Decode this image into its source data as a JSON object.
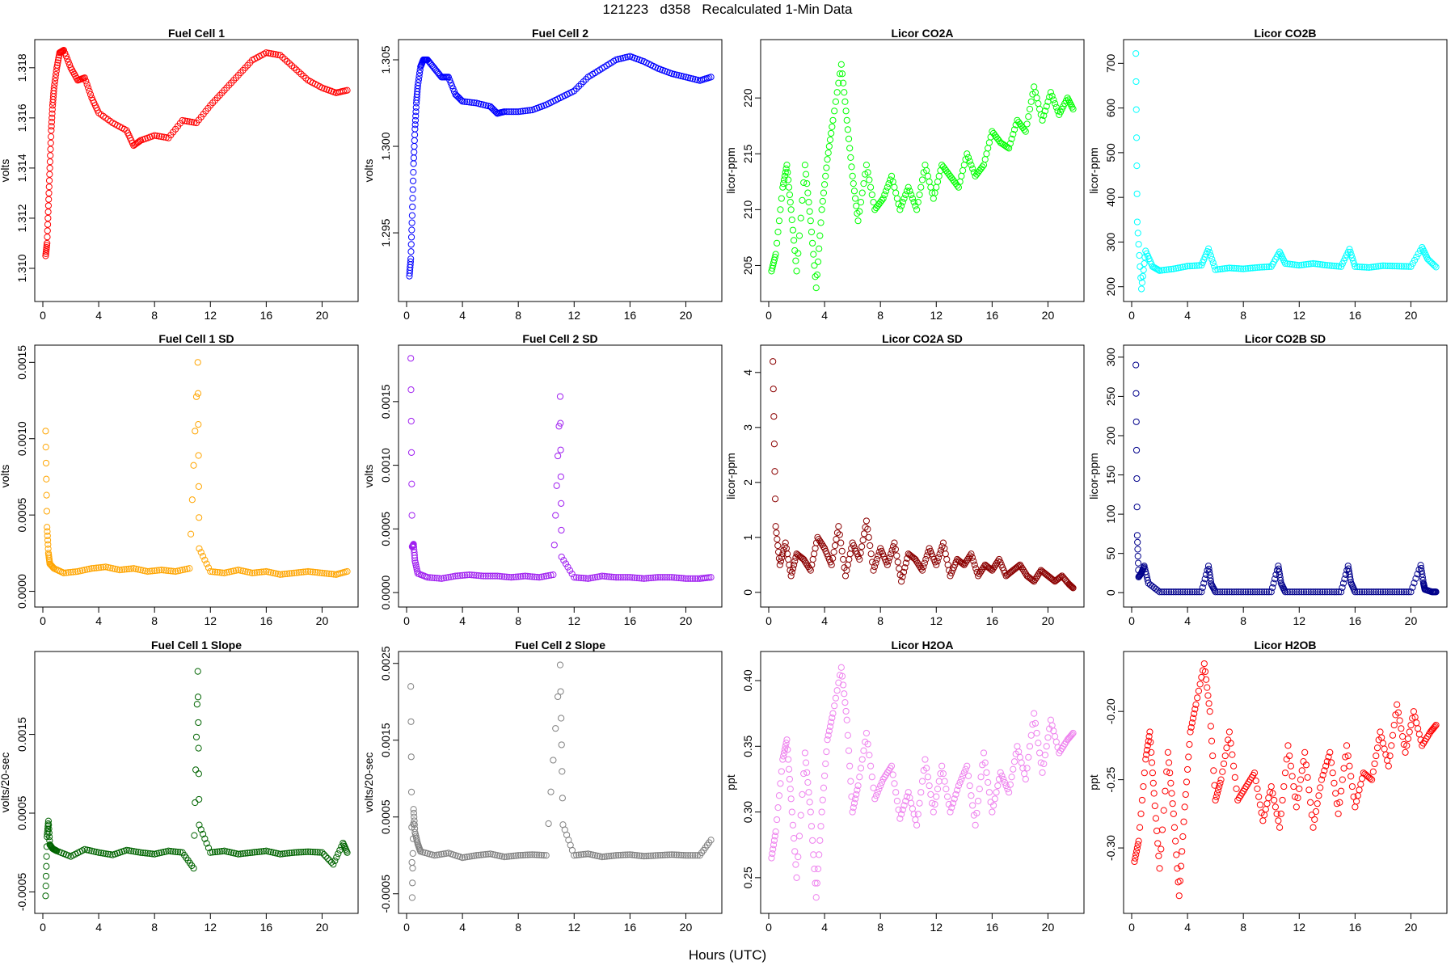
{
  "figure": {
    "title": "121223   d358   Recalculated 1-Min Data",
    "xlabel": "Hours (UTC)"
  },
  "chart_data": [
    {
      "type": "scatter",
      "title": "Fuel Cell 1",
      "ylabel": "volts",
      "color": "#ff0000",
      "xlim": [
        0,
        22
      ],
      "ylim": [
        1.309,
        1.3188
      ],
      "xticks": [
        "0",
        "4",
        "8",
        "12",
        "16",
        "20"
      ],
      "yticks": [
        "1.310",
        "1.312",
        "1.314",
        "1.316",
        "1.318"
      ],
      "x": [
        0.2,
        0.3,
        0.4,
        0.5,
        0.6,
        0.7,
        0.8,
        1.0,
        1.2,
        1.5,
        2.0,
        2.5,
        3.0,
        3.5,
        4.0,
        5.0,
        6.0,
        6.5,
        7.0,
        8.0,
        9.0,
        10.0,
        11.0,
        12.0,
        13.0,
        14.0,
        15.0,
        16.0,
        17.0,
        18.0,
        19.0,
        20.0,
        21.0,
        21.8
      ],
      "y": [
        1.3105,
        1.311,
        1.3125,
        1.314,
        1.3155,
        1.3165,
        1.3172,
        1.318,
        1.3186,
        1.3187,
        1.318,
        1.3175,
        1.3176,
        1.3168,
        1.3162,
        1.3158,
        1.3155,
        1.3149,
        1.3151,
        1.3153,
        1.3152,
        1.3159,
        1.3158,
        1.3165,
        1.3171,
        1.3177,
        1.3183,
        1.3186,
        1.3185,
        1.318,
        1.3175,
        1.3172,
        1.317,
        1.3171
      ]
    },
    {
      "type": "scatter",
      "title": "Fuel Cell 2",
      "ylabel": "volts",
      "color": "#0000ff",
      "xlim": [
        0,
        22
      ],
      "ylim": [
        1.2915,
        1.3057
      ],
      "xticks": [
        "0",
        "4",
        "8",
        "12",
        "16",
        "20"
      ],
      "yticks": [
        "1.295",
        "1.300",
        "1.305"
      ],
      "x": [
        0.2,
        0.3,
        0.4,
        0.5,
        0.6,
        0.7,
        0.8,
        1.0,
        1.2,
        1.5,
        2.0,
        2.5,
        3.0,
        3.5,
        4.0,
        5.0,
        6.0,
        6.5,
        7.0,
        8.0,
        9.0,
        10.0,
        11.0,
        12.0,
        13.0,
        14.0,
        15.0,
        16.0,
        17.0,
        18.0,
        19.0,
        20.0,
        21.0,
        21.8
      ],
      "y": [
        1.2925,
        1.2935,
        1.296,
        1.299,
        1.301,
        1.3025,
        1.3035,
        1.3046,
        1.305,
        1.305,
        1.3045,
        1.304,
        1.304,
        1.303,
        1.3026,
        1.3025,
        1.3023,
        1.3019,
        1.302,
        1.302,
        1.3021,
        1.3024,
        1.3028,
        1.3032,
        1.304,
        1.3045,
        1.305,
        1.3052,
        1.3049,
        1.3045,
        1.3042,
        1.304,
        1.3038,
        1.304
      ]
    },
    {
      "type": "scatter",
      "title": "Licor CO2A",
      "ylabel": "licor-ppm",
      "color": "#00ff00",
      "xlim": [
        0,
        22
      ],
      "ylim": [
        202.5,
        224.5
      ],
      "xticks": [
        "0",
        "4",
        "8",
        "12",
        "16",
        "20"
      ],
      "yticks": [
        "205",
        "210",
        "215",
        "220"
      ],
      "x": [
        0.2,
        0.5,
        1.0,
        1.3,
        1.6,
        2.0,
        2.6,
        3.0,
        3.4,
        3.8,
        4.2,
        4.6,
        5.2,
        5.6,
        6.0,
        6.4,
        7.0,
        7.6,
        8.2,
        8.8,
        9.4,
        10.0,
        10.6,
        11.2,
        11.8,
        12.4,
        13.0,
        13.6,
        14.2,
        14.8,
        15.4,
        16.0,
        16.6,
        17.2,
        17.8,
        18.4,
        19.0,
        19.6,
        20.2,
        20.8,
        21.4,
        21.8
      ],
      "y": [
        204.5,
        206.0,
        212.0,
        214.0,
        210.0,
        204.5,
        214.0,
        209.0,
        203.0,
        210.0,
        214.5,
        218.0,
        223.0,
        218.0,
        213.0,
        209.0,
        214.0,
        210.0,
        211.0,
        213.0,
        210.0,
        212.0,
        210.0,
        214.0,
        211.0,
        214.0,
        213.0,
        212.0,
        215.0,
        213.0,
        214.0,
        217.0,
        216.0,
        215.5,
        218.0,
        217.0,
        221.0,
        218.0,
        220.5,
        218.5,
        220.0,
        219.0
      ]
    },
    {
      "type": "scatter",
      "title": "Licor CO2B",
      "ylabel": "licor-ppm",
      "color": "#00ffff",
      "xlim": [
        0,
        22
      ],
      "ylim": [
        185,
        735
      ],
      "xticks": [
        "0",
        "4",
        "8",
        "12",
        "16",
        "20"
      ],
      "yticks": [
        "200",
        "300",
        "400",
        "500",
        "600",
        "700"
      ],
      "x": [
        0.3,
        0.4,
        0.7,
        1.0,
        1.5,
        2.0,
        3.0,
        4.0,
        5.0,
        5.5,
        6.0,
        7.0,
        8.0,
        9.0,
        10.0,
        10.6,
        11.0,
        12.0,
        13.0,
        14.0,
        15.0,
        15.6,
        16.0,
        17.0,
        18.0,
        19.0,
        20.0,
        20.8,
        21.2,
        21.8
      ],
      "y": [
        722,
        345,
        195,
        280,
        245,
        236,
        240,
        246,
        248,
        285,
        238,
        242,
        240,
        243,
        245,
        278,
        252,
        248,
        252,
        248,
        245,
        284,
        245,
        243,
        247,
        246,
        245,
        288,
        262,
        244
      ]
    },
    {
      "type": "scatter",
      "title": "Fuel Cell 1 SD",
      "ylabel": "volts",
      "color": "#ffa500",
      "xlim": [
        0,
        22
      ],
      "ylim": [
        -5e-05,
        0.00156
      ],
      "xticks": [
        "0",
        "4",
        "8",
        "12",
        "16",
        "20"
      ],
      "yticks": [
        "0.0000",
        "0.0005",
        "0.0010",
        "0.0015"
      ],
      "x": [
        0.2,
        0.3,
        0.4,
        0.5,
        0.8,
        1.5,
        2.5,
        3.5,
        4.5,
        5.5,
        6.5,
        7.5,
        8.5,
        9.5,
        10.5,
        11.1,
        11.2,
        12.0,
        13.0,
        14.0,
        15.0,
        16.0,
        17.0,
        18.0,
        19.0,
        20.0,
        21.0,
        21.8
      ],
      "y": [
        0.00105,
        0.00042,
        0.00025,
        0.00018,
        0.00015,
        0.00012,
        0.00013,
        0.00015,
        0.00016,
        0.00014,
        0.00015,
        0.00013,
        0.00014,
        0.00013,
        0.00015,
        0.0015,
        0.00028,
        0.00013,
        0.00012,
        0.00014,
        0.00012,
        0.00013,
        0.00011,
        0.00012,
        0.00013,
        0.00012,
        0.00011,
        0.00013
      ]
    },
    {
      "type": "scatter",
      "title": "Fuel Cell 2 SD",
      "ylabel": "volts",
      "color": "#a020f0",
      "xlim": [
        0,
        22
      ],
      "ylim": [
        -5e-05,
        0.00188
      ],
      "xticks": [
        "0",
        "4",
        "8",
        "12",
        "16",
        "20"
      ],
      "yticks": [
        "0.0000",
        "0.0005",
        "0.0010",
        "0.0015"
      ],
      "x": [
        0.3,
        0.4,
        0.5,
        0.6,
        0.8,
        1.5,
        2.5,
        3.5,
        4.5,
        5.5,
        6.5,
        7.5,
        8.5,
        9.5,
        10.5,
        11.0,
        11.1,
        12.0,
        13.0,
        14.0,
        15.0,
        16.0,
        17.0,
        18.0,
        19.0,
        20.0,
        21.0,
        21.8
      ],
      "y": [
        0.00184,
        0.00036,
        0.00038,
        0.00025,
        0.00015,
        0.00012,
        0.00011,
        0.00013,
        0.00014,
        0.00013,
        0.00013,
        0.00012,
        0.00013,
        0.00012,
        0.00014,
        0.00154,
        0.00028,
        0.00012,
        0.00011,
        0.00013,
        0.00012,
        0.00012,
        0.00011,
        0.00012,
        0.00012,
        0.00011,
        0.00011,
        0.00012
      ]
    },
    {
      "type": "scatter",
      "title": "Licor CO2A SD",
      "ylabel": "licor-ppm",
      "color": "#8b0000",
      "xlim": [
        0,
        22
      ],
      "ylim": [
        -0.12,
        4.35
      ],
      "xticks": [
        "0",
        "4",
        "8",
        "12",
        "16",
        "20"
      ],
      "yticks": [
        "0",
        "1",
        "2",
        "3",
        "4"
      ],
      "x": [
        0.3,
        0.5,
        0.8,
        1.2,
        1.6,
        2.0,
        2.5,
        3.0,
        3.5,
        4.0,
        4.5,
        5.0,
        5.5,
        6.0,
        6.5,
        7.0,
        7.5,
        8.0,
        8.5,
        9.0,
        9.5,
        10.0,
        10.5,
        11.0,
        11.5,
        12.0,
        12.5,
        13.0,
        13.5,
        14.0,
        14.5,
        15.0,
        15.5,
        16.0,
        16.5,
        17.0,
        17.5,
        18.0,
        18.5,
        19.0,
        19.5,
        20.0,
        20.5,
        21.0,
        21.5,
        21.8
      ],
      "y": [
        4.2,
        1.2,
        0.5,
        0.9,
        0.3,
        0.7,
        0.6,
        0.4,
        1.0,
        0.8,
        0.5,
        1.2,
        0.3,
        0.9,
        0.6,
        1.3,
        0.4,
        0.8,
        0.5,
        0.9,
        0.2,
        0.7,
        0.6,
        0.4,
        0.8,
        0.5,
        0.9,
        0.3,
        0.6,
        0.5,
        0.7,
        0.3,
        0.5,
        0.4,
        0.6,
        0.3,
        0.4,
        0.5,
        0.3,
        0.2,
        0.4,
        0.3,
        0.2,
        0.3,
        0.15,
        0.08
      ]
    },
    {
      "type": "scatter",
      "title": "Licor CO2B SD",
      "ylabel": "licor-ppm",
      "color": "#00008b",
      "xlim": [
        0,
        22
      ],
      "ylim": [
        -8,
        305
      ],
      "xticks": [
        "0",
        "4",
        "8",
        "12",
        "16",
        "20"
      ],
      "yticks": [
        "0",
        "50",
        "100",
        "150",
        "200",
        "250",
        "300"
      ],
      "x": [
        0.3,
        0.4,
        0.5,
        0.7,
        0.9,
        1.2,
        2.0,
        3.0,
        4.0,
        5.0,
        5.5,
        5.7,
        6.0,
        7.0,
        8.0,
        9.0,
        10.0,
        10.5,
        10.7,
        11.0,
        12.0,
        13.0,
        14.0,
        15.0,
        15.5,
        15.7,
        16.0,
        17.0,
        18.0,
        19.0,
        20.0,
        20.7,
        20.9,
        21.0,
        21.5,
        21.8
      ],
      "y": [
        290,
        73,
        20,
        25,
        34,
        12,
        1,
        1,
        1,
        1,
        34,
        11,
        1,
        1,
        1,
        1,
        1,
        34,
        12,
        1,
        1,
        1,
        1,
        1,
        34,
        13,
        1,
        1,
        1,
        1,
        1,
        35,
        12,
        4,
        1,
        1
      ]
    },
    {
      "type": "scatter",
      "title": "Fuel Cell 1 Slope",
      "ylabel": "volts/20-sec",
      "color": "#006400",
      "xlim": [
        0,
        22
      ],
      "ylim": [
        -0.00067,
        0.00245
      ],
      "xticks": [
        "0",
        "4",
        "8",
        "12",
        "16",
        "20"
      ],
      "yticks": [
        "-0.0005",
        "0.0005",
        "0.0015"
      ],
      "x": [
        0.2,
        0.3,
        0.4,
        0.5,
        0.7,
        1.0,
        2.0,
        3.0,
        4.0,
        5.0,
        6.0,
        7.0,
        8.0,
        9.0,
        10.0,
        10.8,
        11.1,
        11.2,
        12.0,
        13.0,
        14.0,
        15.0,
        16.0,
        17.0,
        18.0,
        19.0,
        20.0,
        20.8,
        21.5,
        21.8
      ],
      "y": [
        -0.00055,
        0.0002,
        0.0004,
        0.0001,
        5e-05,
        2e-05,
        -5e-05,
        4e-05,
        0.0,
        -3e-05,
        3e-05,
        0.0,
        -2e-05,
        2e-05,
        0.0,
        -0.0002,
        0.0023,
        0.00035,
        0.0,
        2e-05,
        -2e-05,
        0.0,
        2e-05,
        -2e-05,
        0.0,
        1e-05,
        0.0,
        -0.00015,
        0.00012,
        0.0
      ]
    },
    {
      "type": "scatter",
      "title": "Fuel Cell 2 Slope",
      "ylabel": "volts/20-sec",
      "color": "#808080",
      "xlim": [
        0,
        22
      ],
      "ylim": [
        -0.00065,
        0.00255
      ],
      "xticks": [
        "0",
        "4",
        "8",
        "12",
        "16",
        "20"
      ],
      "yticks": [
        "-0.0005",
        "0.0005",
        "0.0015",
        "0.0025"
      ],
      "x": [
        0.3,
        0.4,
        0.5,
        0.6,
        0.8,
        1.0,
        2.0,
        3.0,
        4.0,
        5.0,
        6.0,
        7.0,
        8.0,
        9.0,
        10.0,
        11.0,
        11.2,
        12.0,
        13.0,
        14.0,
        15.0,
        16.0,
        17.0,
        18.0,
        19.0,
        20.0,
        21.0,
        21.8
      ],
      "y": [
        0.0022,
        -0.00055,
        0.0006,
        0.0003,
        0.00015,
        5e-05,
        0.0,
        3e-05,
        -3e-05,
        0.0,
        2e-05,
        -2e-05,
        0.0,
        1e-05,
        0.0,
        0.00248,
        0.0004,
        0.0,
        2e-05,
        -2e-05,
        0.0,
        1e-05,
        -1e-05,
        0.0,
        1e-05,
        0.0,
        0.0,
        0.0002
      ]
    },
    {
      "type": "scatter",
      "title": "Licor H2OA",
      "ylabel": "ppt",
      "color": "#ee82ee",
      "xlim": [
        0,
        22
      ],
      "ylim": [
        0.229,
        0.416
      ],
      "xticks": [
        "0",
        "4",
        "8",
        "12",
        "16",
        "20"
      ],
      "yticks": [
        "0.25",
        "0.30",
        "0.35",
        "0.40"
      ],
      "x": [
        0.2,
        0.5,
        1.0,
        1.3,
        1.6,
        2.0,
        2.6,
        3.0,
        3.4,
        3.8,
        4.2,
        4.6,
        5.2,
        5.6,
        6.0,
        6.4,
        7.0,
        7.6,
        8.2,
        8.8,
        9.4,
        10.0,
        10.6,
        11.2,
        11.8,
        12.4,
        13.0,
        13.6,
        14.2,
        14.8,
        15.4,
        16.0,
        16.6,
        17.2,
        17.8,
        18.4,
        19.0,
        19.6,
        20.2,
        20.8,
        21.4,
        21.8
      ],
      "y": [
        0.265,
        0.285,
        0.34,
        0.355,
        0.31,
        0.25,
        0.345,
        0.3,
        0.235,
        0.3,
        0.355,
        0.375,
        0.41,
        0.37,
        0.3,
        0.32,
        0.36,
        0.31,
        0.325,
        0.335,
        0.295,
        0.315,
        0.29,
        0.34,
        0.3,
        0.335,
        0.3,
        0.32,
        0.335,
        0.29,
        0.345,
        0.3,
        0.33,
        0.315,
        0.35,
        0.325,
        0.375,
        0.33,
        0.37,
        0.345,
        0.355,
        0.36
      ]
    },
    {
      "type": "scatter",
      "title": "Licor H2OB",
      "ylabel": "ppt",
      "color": "#ff0000",
      "xlim": [
        0,
        22
      ],
      "ylim": [
        -0.342,
        -0.162
      ],
      "xticks": [
        "0",
        "4",
        "8",
        "12",
        "16",
        "20"
      ],
      "yticks": [
        "-0.30",
        "-0.25",
        "-0.20"
      ],
      "x": [
        0.2,
        0.5,
        1.0,
        1.3,
        1.6,
        2.0,
        2.6,
        3.0,
        3.4,
        3.8,
        4.2,
        4.6,
        5.2,
        5.6,
        6.0,
        6.4,
        7.0,
        7.6,
        8.2,
        8.8,
        9.4,
        10.0,
        10.6,
        11.2,
        11.8,
        12.4,
        13.0,
        13.6,
        14.2,
        14.8,
        15.4,
        16.0,
        16.6,
        17.2,
        17.8,
        18.4,
        19.0,
        19.6,
        20.2,
        20.8,
        21.4,
        21.8
      ],
      "y": [
        -0.31,
        -0.295,
        -0.235,
        -0.215,
        -0.26,
        -0.315,
        -0.23,
        -0.275,
        -0.335,
        -0.27,
        -0.215,
        -0.195,
        -0.165,
        -0.2,
        -0.265,
        -0.25,
        -0.215,
        -0.265,
        -0.255,
        -0.245,
        -0.28,
        -0.255,
        -0.285,
        -0.225,
        -0.27,
        -0.23,
        -0.285,
        -0.25,
        -0.23,
        -0.275,
        -0.225,
        -0.27,
        -0.245,
        -0.25,
        -0.215,
        -0.24,
        -0.195,
        -0.23,
        -0.2,
        -0.225,
        -0.215,
        -0.21
      ]
    }
  ]
}
